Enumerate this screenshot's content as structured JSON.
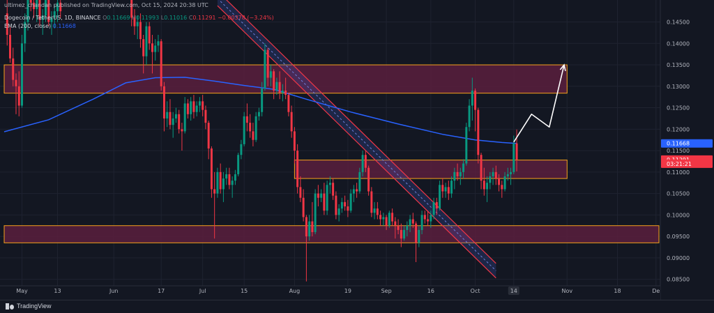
{
  "header": {
    "publisher": "ultimez_chandan published on TradingView.com, Oct 15, 2024 20:38 UTC",
    "symbol": "Dogecoin / TetherUS, 1D, BINANCE",
    "o_label": "O",
    "o_value": "0.11669",
    "h_label": "H",
    "h_value": "0.11993",
    "l_label": "L",
    "l_value": "0.11016",
    "c_label": "C",
    "c_value": "0.11291",
    "change": "−0.00378 (−3.24%)",
    "ema_label": "EMA (200, close)",
    "ema_value": "0.11668"
  },
  "footer": {
    "brand": "TradingView"
  },
  "colors": {
    "background": "#131722",
    "up": "#089981",
    "down": "#f23645",
    "ema": "#2962ff",
    "zone_fill": "#5a1f3d",
    "zone_border": "#f7a21b",
    "channel": "#f23645",
    "arrow": "#ffffff"
  },
  "chart_data": {
    "type": "candlestick",
    "symbol": "DOGEUSDT",
    "timeframe": "1D",
    "x_ticks": [
      {
        "label": "May",
        "date": "2024-05-01"
      },
      {
        "label": "13",
        "date": "2024-05-13"
      },
      {
        "label": "Jun",
        "date": "2024-06-01"
      },
      {
        "label": "17",
        "date": "2024-06-17"
      },
      {
        "label": "Jul",
        "date": "2024-07-01"
      },
      {
        "label": "15",
        "date": "2024-07-15"
      },
      {
        "label": "Aug",
        "date": "2024-08-01"
      },
      {
        "label": "19",
        "date": "2024-08-19"
      },
      {
        "label": "Sep",
        "date": "2024-09-01"
      },
      {
        "label": "16",
        "date": "2024-09-16"
      },
      {
        "label": "Oct",
        "date": "2024-10-01"
      },
      {
        "label": "14",
        "date": "2024-10-14",
        "highlight": true
      },
      {
        "label": "Nov",
        "date": "2024-11-01"
      },
      {
        "label": "18",
        "date": "2024-11-18"
      },
      {
        "label": "De",
        "date": "2024-12-01"
      }
    ],
    "y_ticks": [
      "0.14500",
      "0.14000",
      "0.13500",
      "0.13000",
      "0.12500",
      "0.12000",
      "0.11500",
      "0.11000",
      "0.10500",
      "0.10000",
      "0.09500",
      "0.09000",
      "0.08500"
    ],
    "ylim": [
      0.0838,
      0.1485
    ],
    "xlim": [
      "2024-04-25",
      "2024-12-02"
    ],
    "price_labels": [
      {
        "text": "0.11668",
        "value": 0.11668,
        "color": "#2962ff"
      },
      {
        "text": "0.11291",
        "value": 0.11291,
        "color": "#f23645"
      },
      {
        "text": "03:21:21",
        "value": 0.11195,
        "color": "#f23645"
      }
    ],
    "ema": {
      "name": "EMA (200, close)",
      "color": "#2962ff",
      "points": [
        [
          "2024-04-25",
          0.1194
        ],
        [
          "2024-05-10",
          0.1222
        ],
        [
          "2024-05-25",
          0.127
        ],
        [
          "2024-06-05",
          0.1308
        ],
        [
          "2024-06-15",
          0.132
        ],
        [
          "2024-06-25",
          0.1321
        ],
        [
          "2024-07-05",
          0.1312
        ],
        [
          "2024-07-15",
          0.1302
        ],
        [
          "2024-07-25",
          0.1293
        ],
        [
          "2024-08-05",
          0.127
        ],
        [
          "2024-08-20",
          0.124
        ],
        [
          "2024-09-05",
          0.1212
        ],
        [
          "2024-09-20",
          0.1188
        ],
        [
          "2024-10-01",
          0.1175
        ],
        [
          "2024-10-10",
          0.1169
        ],
        [
          "2024-10-15",
          0.11668
        ]
      ]
    },
    "zones": [
      {
        "from": "2024-04-25",
        "to": "2024-11-01",
        "top": 0.135,
        "bottom": 0.1284
      },
      {
        "from": "2024-08-01",
        "to": "2024-11-01",
        "top": 0.1128,
        "bottom": 0.1085
      },
      {
        "from": "2024-04-25",
        "to": "2024-12-02",
        "top": 0.0975,
        "bottom": 0.0935
      }
    ],
    "channel": {
      "upper": [
        [
          "2024-07-06",
          0.1488
        ],
        [
          "2024-10-08",
          0.0853
        ]
      ],
      "lower": [
        [
          "2024-07-06",
          0.1522
        ],
        [
          "2024-10-08",
          0.0887
        ]
      ]
    },
    "projection": [
      [
        "2024-10-14",
        0.117
      ],
      [
        "2024-10-20",
        0.1235
      ],
      [
        "2024-10-26",
        0.1205
      ],
      [
        "2024-10-31",
        0.135
      ]
    ],
    "candles": [
      [
        "2024-04-26",
        0.147,
        0.151,
        0.1395,
        0.142
      ],
      [
        "2024-04-27",
        0.142,
        0.144,
        0.1355,
        0.1365
      ],
      [
        "2024-04-28",
        0.1365,
        0.139,
        0.13,
        0.1315
      ],
      [
        "2024-04-29",
        0.1315,
        0.133,
        0.1235,
        0.13
      ],
      [
        "2024-04-30",
        0.13,
        0.1335,
        0.123,
        0.1255
      ],
      [
        "2024-05-01",
        0.1255,
        0.142,
        0.125,
        0.14
      ],
      [
        "2024-05-02",
        0.14,
        0.147,
        0.138,
        0.145
      ],
      [
        "2024-05-03",
        0.145,
        0.1525,
        0.143,
        0.151
      ],
      [
        "2024-05-04",
        0.151,
        0.154,
        0.1475,
        0.1495
      ],
      [
        "2024-05-05",
        0.1495,
        0.152,
        0.146,
        0.148
      ],
      [
        "2024-05-06",
        0.148,
        0.153,
        0.145,
        0.151
      ],
      [
        "2024-05-07",
        0.151,
        0.1525,
        0.144,
        0.1455
      ],
      [
        "2024-05-08",
        0.1455,
        0.148,
        0.142,
        0.1465
      ],
      [
        "2024-05-09",
        0.1465,
        0.153,
        0.145,
        0.1515
      ],
      [
        "2024-05-10",
        0.1515,
        0.1535,
        0.144,
        0.145
      ],
      [
        "2024-05-11",
        0.145,
        0.1475,
        0.142,
        0.146
      ],
      [
        "2024-05-12",
        0.146,
        0.149,
        0.1435,
        0.1475
      ],
      [
        "2024-05-13",
        0.1475,
        0.151,
        0.145,
        0.1495
      ],
      [
        "2024-05-14",
        0.1495,
        0.1505,
        0.146,
        0.1475
      ],
      [
        "2024-06-07",
        0.153,
        0.154,
        0.144,
        0.146
      ],
      [
        "2024-06-08",
        0.146,
        0.148,
        0.142,
        0.144
      ],
      [
        "2024-06-09",
        0.144,
        0.1465,
        0.141,
        0.145
      ],
      [
        "2024-06-10",
        0.145,
        0.147,
        0.139,
        0.141
      ],
      [
        "2024-06-11",
        0.141,
        0.142,
        0.133,
        0.137
      ],
      [
        "2024-06-12",
        0.137,
        0.145,
        0.135,
        0.144
      ],
      [
        "2024-06-13",
        0.144,
        0.145,
        0.1385,
        0.14
      ],
      [
        "2024-06-14",
        0.14,
        0.142,
        0.133,
        0.138
      ],
      [
        "2024-06-15",
        0.138,
        0.141,
        0.136,
        0.1395
      ],
      [
        "2024-06-16",
        0.1395,
        0.142,
        0.138,
        0.1405
      ],
      [
        "2024-06-17",
        0.1405,
        0.141,
        0.129,
        0.13
      ],
      [
        "2024-06-18",
        0.13,
        0.131,
        0.1195,
        0.1225
      ],
      [
        "2024-06-19",
        0.1225,
        0.1265,
        0.1205,
        0.124
      ],
      [
        "2024-06-20",
        0.124,
        0.127,
        0.12,
        0.121
      ],
      [
        "2024-06-21",
        0.121,
        0.124,
        0.118,
        0.1225
      ],
      [
        "2024-06-22",
        0.1225,
        0.125,
        0.1215,
        0.1235
      ],
      [
        "2024-06-23",
        0.1235,
        0.1245,
        0.119,
        0.12
      ],
      [
        "2024-06-24",
        0.12,
        0.1215,
        0.115,
        0.1195
      ],
      [
        "2024-06-25",
        0.1195,
        0.1275,
        0.119,
        0.126
      ],
      [
        "2024-06-26",
        0.126,
        0.127,
        0.1225,
        0.1235
      ],
      [
        "2024-06-27",
        0.1235,
        0.1275,
        0.122,
        0.1265
      ],
      [
        "2024-06-28",
        0.1265,
        0.128,
        0.1225,
        0.124
      ],
      [
        "2024-06-29",
        0.124,
        0.1265,
        0.123,
        0.1255
      ],
      [
        "2024-06-30",
        0.1255,
        0.1275,
        0.124,
        0.1265
      ],
      [
        "2024-07-01",
        0.1265,
        0.128,
        0.123,
        0.1245
      ],
      [
        "2024-07-02",
        0.1245,
        0.1255,
        0.12,
        0.1215
      ],
      [
        "2024-07-03",
        0.1215,
        0.122,
        0.113,
        0.1155
      ],
      [
        "2024-07-04",
        0.1155,
        0.116,
        0.104,
        0.106
      ],
      [
        "2024-07-05",
        0.106,
        0.11,
        0.0945,
        0.105
      ],
      [
        "2024-07-06",
        0.105,
        0.111,
        0.104,
        0.11
      ],
      [
        "2024-07-07",
        0.11,
        0.112,
        0.105,
        0.106
      ],
      [
        "2024-07-08",
        0.106,
        0.11,
        0.103,
        0.1085
      ],
      [
        "2024-07-09",
        0.1085,
        0.111,
        0.107,
        0.1095
      ],
      [
        "2024-07-10",
        0.1095,
        0.111,
        0.106,
        0.107
      ],
      [
        "2024-07-11",
        0.107,
        0.109,
        0.104,
        0.108
      ],
      [
        "2024-07-12",
        0.108,
        0.1105,
        0.107,
        0.1095
      ],
      [
        "2024-07-13",
        0.1095,
        0.1145,
        0.109,
        0.114
      ],
      [
        "2024-07-14",
        0.114,
        0.1175,
        0.113,
        0.1165
      ],
      [
        "2024-07-15",
        0.1165,
        0.124,
        0.116,
        0.123
      ],
      [
        "2024-07-16",
        0.123,
        0.126,
        0.1195,
        0.1215
      ],
      [
        "2024-07-17",
        0.1215,
        0.1235,
        0.118,
        0.1195
      ],
      [
        "2024-07-18",
        0.1195,
        0.1215,
        0.116,
        0.1175
      ],
      [
        "2024-07-19",
        0.1175,
        0.124,
        0.117,
        0.123
      ],
      [
        "2024-07-20",
        0.123,
        0.125,
        0.122,
        0.124
      ],
      [
        "2024-07-21",
        0.124,
        0.131,
        0.123,
        0.1295
      ],
      [
        "2024-07-22",
        0.1295,
        0.14,
        0.129,
        0.1385
      ],
      [
        "2024-07-23",
        0.1385,
        0.139,
        0.13,
        0.132
      ],
      [
        "2024-07-24",
        0.132,
        0.135,
        0.13,
        0.1335
      ],
      [
        "2024-07-25",
        0.1335,
        0.134,
        0.127,
        0.129
      ],
      [
        "2024-07-26",
        0.129,
        0.132,
        0.128,
        0.131
      ],
      [
        "2024-07-27",
        0.131,
        0.1335,
        0.127,
        0.1285
      ],
      [
        "2024-07-28",
        0.1285,
        0.1305,
        0.1265,
        0.129
      ],
      [
        "2024-07-29",
        0.129,
        0.132,
        0.127,
        0.128
      ],
      [
        "2024-07-30",
        0.128,
        0.1285,
        0.123,
        0.124
      ],
      [
        "2024-07-31",
        0.124,
        0.1255,
        0.118,
        0.1195
      ],
      [
        "2024-08-01",
        0.1195,
        0.1205,
        0.112,
        0.115
      ],
      [
        "2024-08-02",
        0.115,
        0.1165,
        0.105,
        0.1065
      ],
      [
        "2024-08-03",
        0.1065,
        0.109,
        0.103,
        0.104
      ],
      [
        "2024-08-04",
        0.104,
        0.106,
        0.0985,
        0.0995
      ],
      [
        "2024-08-05",
        0.0995,
        0.1,
        0.0845,
        0.095
      ],
      [
        "2024-08-06",
        0.095,
        0.1,
        0.094,
        0.0985
      ],
      [
        "2024-08-07",
        0.0985,
        0.103,
        0.095,
        0.096
      ],
      [
        "2024-08-08",
        0.096,
        0.106,
        0.0955,
        0.105
      ],
      [
        "2024-08-09",
        0.105,
        0.107,
        0.102,
        0.104
      ],
      [
        "2024-08-10",
        0.104,
        0.106,
        0.103,
        0.105
      ],
      [
        "2024-08-11",
        0.105,
        0.1075,
        0.1,
        0.101
      ],
      [
        "2024-08-12",
        0.101,
        0.108,
        0.1,
        0.107
      ],
      [
        "2024-08-13",
        0.107,
        0.109,
        0.105,
        0.1075
      ],
      [
        "2024-08-14",
        0.1075,
        0.1085,
        0.1035,
        0.1045
      ],
      [
        "2024-08-15",
        0.1045,
        0.1055,
        0.099,
        0.1
      ],
      [
        "2024-08-16",
        0.1,
        0.1025,
        0.0985,
        0.1015
      ],
      [
        "2024-08-17",
        0.1015,
        0.104,
        0.1005,
        0.103
      ],
      [
        "2024-08-18",
        0.103,
        0.1045,
        0.101,
        0.102
      ],
      [
        "2024-08-19",
        0.102,
        0.1035,
        0.0995,
        0.101
      ],
      [
        "2024-08-20",
        0.101,
        0.106,
        0.1005,
        0.105
      ],
      [
        "2024-08-21",
        0.105,
        0.107,
        0.103,
        0.106
      ],
      [
        "2024-08-22",
        0.106,
        0.1075,
        0.104,
        0.1055
      ],
      [
        "2024-08-23",
        0.1055,
        0.111,
        0.105,
        0.11
      ],
      [
        "2024-08-24",
        0.11,
        0.115,
        0.109,
        0.114
      ],
      [
        "2024-08-25",
        0.114,
        0.115,
        0.11,
        0.111
      ],
      [
        "2024-08-26",
        0.111,
        0.1115,
        0.1045,
        0.1055
      ],
      [
        "2024-08-27",
        0.1055,
        0.1065,
        0.0995,
        0.1005
      ],
      [
        "2024-08-28",
        0.1005,
        0.103,
        0.099,
        0.1015
      ],
      [
        "2024-08-29",
        0.1015,
        0.103,
        0.099,
        0.1
      ],
      [
        "2024-08-30",
        0.1,
        0.101,
        0.0975,
        0.099
      ],
      [
        "2024-08-31",
        0.099,
        0.1005,
        0.0975,
        0.0995
      ],
      [
        "2024-09-01",
        0.0995,
        0.1,
        0.0965,
        0.0975
      ],
      [
        "2024-09-02",
        0.0975,
        0.101,
        0.097,
        0.1005
      ],
      [
        "2024-09-03",
        0.1005,
        0.1015,
        0.0975,
        0.0985
      ],
      [
        "2024-09-04",
        0.0985,
        0.0995,
        0.0945,
        0.0975
      ],
      [
        "2024-09-05",
        0.0975,
        0.099,
        0.0955,
        0.0965
      ],
      [
        "2024-09-06",
        0.0965,
        0.098,
        0.0925,
        0.0945
      ],
      [
        "2024-09-07",
        0.0945,
        0.0975,
        0.094,
        0.0965
      ],
      [
        "2024-09-08",
        0.0965,
        0.0985,
        0.095,
        0.0975
      ],
      [
        "2024-09-09",
        0.0975,
        0.1,
        0.096,
        0.099
      ],
      [
        "2024-09-10",
        0.099,
        0.1005,
        0.097,
        0.098
      ],
      [
        "2024-09-11",
        0.098,
        0.0985,
        0.089,
        0.0935
      ],
      [
        "2024-09-12",
        0.0935,
        0.0975,
        0.0925,
        0.0965
      ],
      [
        "2024-09-13",
        0.0965,
        0.101,
        0.0955,
        0.1
      ],
      [
        "2024-09-14",
        0.1,
        0.101,
        0.098,
        0.099
      ],
      [
        "2024-09-15",
        0.099,
        0.101,
        0.0975,
        0.0985
      ],
      [
        "2024-09-16",
        0.0985,
        0.101,
        0.097,
        0.1
      ],
      [
        "2024-09-17",
        0.1,
        0.104,
        0.099,
        0.103
      ],
      [
        "2024-09-18",
        0.103,
        0.104,
        0.1,
        0.1015
      ],
      [
        "2024-09-19",
        0.1015,
        0.108,
        0.101,
        0.107
      ],
      [
        "2024-09-20",
        0.107,
        0.1085,
        0.104,
        0.1055
      ],
      [
        "2024-09-21",
        0.1055,
        0.1075,
        0.104,
        0.1065
      ],
      [
        "2024-09-22",
        0.1065,
        0.108,
        0.1035,
        0.105
      ],
      [
        "2024-09-23",
        0.105,
        0.109,
        0.104,
        0.108
      ],
      [
        "2024-09-24",
        0.108,
        0.111,
        0.106,
        0.11
      ],
      [
        "2024-09-25",
        0.11,
        0.112,
        0.108,
        0.109
      ],
      [
        "2024-09-26",
        0.109,
        0.111,
        0.107,
        0.11
      ],
      [
        "2024-09-27",
        0.11,
        0.113,
        0.1085,
        0.112
      ],
      [
        "2024-09-28",
        0.112,
        0.1215,
        0.1115,
        0.1205
      ],
      [
        "2024-09-29",
        0.1205,
        0.127,
        0.1195,
        0.1255
      ],
      [
        "2024-09-30",
        0.1255,
        0.132,
        0.122,
        0.129
      ],
      [
        "2024-10-01",
        0.129,
        0.1295,
        0.1195,
        0.1245
      ],
      [
        "2024-10-02",
        0.1245,
        0.125,
        0.112,
        0.114
      ],
      [
        "2024-10-03",
        0.114,
        0.1145,
        0.106,
        0.108
      ],
      [
        "2024-10-04",
        0.108,
        0.111,
        0.1045,
        0.106
      ],
      [
        "2024-10-05",
        0.106,
        0.109,
        0.103,
        0.1075
      ],
      [
        "2024-10-06",
        0.1075,
        0.11,
        0.106,
        0.109
      ],
      [
        "2024-10-07",
        0.109,
        0.111,
        0.107,
        0.11
      ],
      [
        "2024-10-08",
        0.11,
        0.1115,
        0.107,
        0.1085
      ],
      [
        "2024-10-09",
        0.1085,
        0.1095,
        0.1055,
        0.107
      ],
      [
        "2024-10-10",
        0.107,
        0.108,
        0.104,
        0.106
      ],
      [
        "2024-10-11",
        0.106,
        0.11,
        0.1055,
        0.109
      ],
      [
        "2024-10-12",
        0.109,
        0.111,
        0.108,
        0.1095
      ],
      [
        "2024-10-13",
        0.1095,
        0.111,
        0.107,
        0.11
      ],
      [
        "2024-10-14",
        0.11,
        0.1185,
        0.1095,
        0.11669
      ],
      [
        "2024-10-15",
        0.11669,
        0.11993,
        0.11016,
        0.11291
      ]
    ]
  }
}
